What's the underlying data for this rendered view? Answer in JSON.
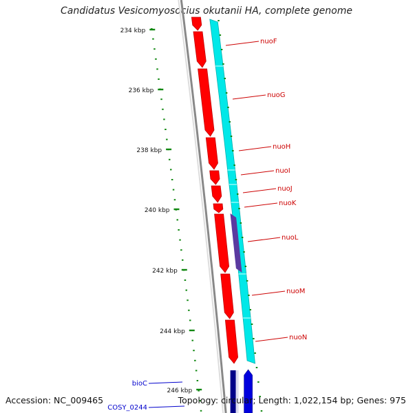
{
  "title": "Candidatus Vesicomyosocius okutanii HA, complete genome",
  "footer": {
    "accession": "Accession: NC_009465",
    "summary": "Topology: circular; Length: 1,022,154 bp; Genes: 975"
  },
  "colors": {
    "forward_gene": "#ff0000",
    "forward_gene_dark": "#c00000",
    "reverse_gene": "#00e8e8",
    "reverse_gene_dark": "#00b0b0",
    "operon_feature": "#5a3aa0",
    "other_gene": "#0000dd",
    "other_gene_dark": "#000088",
    "backbone": "#888888",
    "tick": "#118811",
    "gene_label": "#cc0000",
    "other_label": "#0000cc"
  },
  "ticks": [
    {
      "label": "234 kbp"
    },
    {
      "label": "236 kbp"
    },
    {
      "label": "238 kbp"
    },
    {
      "label": "240 kbp"
    },
    {
      "label": "242 kbp"
    },
    {
      "label": "244 kbp"
    },
    {
      "label": "246 kbp"
    }
  ],
  "gene_labels": [
    {
      "name": "nuoF"
    },
    {
      "name": "nuoG"
    },
    {
      "name": "nuoH"
    },
    {
      "name": "nuoI"
    },
    {
      "name": "nuoJ"
    },
    {
      "name": "nuoK"
    },
    {
      "name": "nuoL"
    },
    {
      "name": "nuoM"
    },
    {
      "name": "nuoN"
    }
  ],
  "other_labels": [
    {
      "name": "bioC"
    },
    {
      "name": "COSY_0244"
    }
  ]
}
